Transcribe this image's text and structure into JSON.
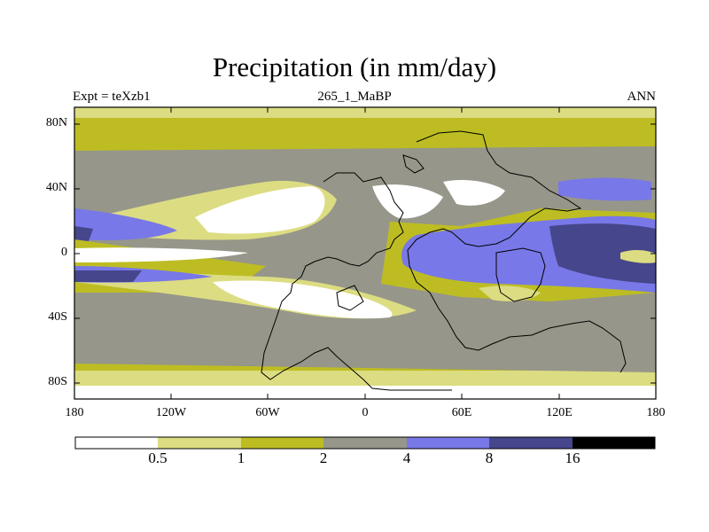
{
  "title": "Precipitation (in mm/day)",
  "subtitle_left": "Expt = teXzb1",
  "subtitle_center": "265_1_MaBP",
  "subtitle_right": "ANN",
  "lat_labels": [
    "80N",
    "40N",
    "0",
    "40S",
    "80S"
  ],
  "lon_labels": [
    "180",
    "120W",
    "60W",
    "0",
    "60E",
    "120E",
    "180"
  ],
  "colorbar": {
    "labels": [
      "0.5",
      "1",
      "2",
      "4",
      "8",
      "16"
    ],
    "colors": [
      "#ffffff",
      "#dcdc82",
      "#bdbd23",
      "#96968a",
      "#7878e8",
      "#46468c",
      "#000000"
    ]
  },
  "chart_data": {
    "type": "heatmap",
    "title": "Precipitation (in mm/day)",
    "variable": "Precipitation",
    "units": "mm/day",
    "experiment": "teXzb1",
    "period": "265_1_MaBP",
    "season": "ANN",
    "contour_levels": [
      0.5,
      1,
      2,
      4,
      8,
      16
    ],
    "lat_range": [
      -90,
      90
    ],
    "lon_range": [
      -180,
      180
    ]
  }
}
